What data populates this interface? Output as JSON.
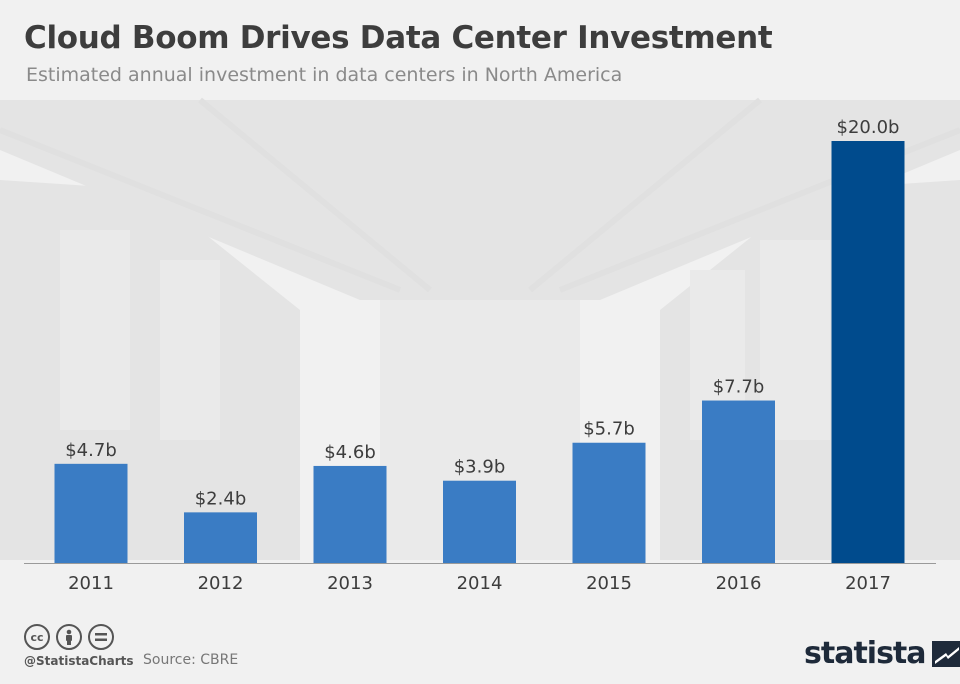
{
  "header": {
    "title": "Cloud Boom Drives Data Center Investment",
    "subtitle": "Estimated annual investment in data centers in North America"
  },
  "footer": {
    "handle": "@StatistaCharts",
    "source": "Source: CBRE",
    "brand": "statista"
  },
  "colors": {
    "bar": "#3a7cc4",
    "highlight": "#004b8d",
    "label": "#3d3d3d"
  },
  "chart_data": {
    "type": "bar",
    "title": "Cloud Boom Drives Data Center Investment",
    "subtitle": "Estimated annual investment in data centers in North America",
    "categories": [
      "2011",
      "2012",
      "2013",
      "2014",
      "2015",
      "2016",
      "2017"
    ],
    "values": [
      4.7,
      2.4,
      4.6,
      3.9,
      5.7,
      7.7,
      20.0
    ],
    "value_labels": [
      "$4.7b",
      "$2.4b",
      "$4.6b",
      "$3.9b",
      "$5.7b",
      "$7.7b",
      "$20.0b"
    ],
    "highlight_category": "2017",
    "xlabel": "",
    "ylabel": "",
    "ylim": [
      0,
      20
    ],
    "grid": false,
    "legend": "none"
  }
}
